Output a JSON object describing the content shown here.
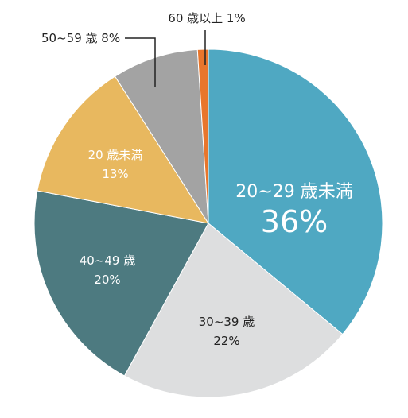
{
  "chart_data": {
    "type": "pie",
    "title": "",
    "slices": [
      {
        "label": "20~29 歳未満",
        "value": 36,
        "value_text": "36%",
        "color": "#4FA8C2",
        "text_color": "#ffffff"
      },
      {
        "label": "30~39 歳",
        "value": 22,
        "value_text": "22%",
        "color": "#DDDEDF",
        "text_color": "#222222"
      },
      {
        "label": "40~49 歳",
        "value": 20,
        "value_text": "20%",
        "color": "#4D7A80",
        "text_color": "#ffffff"
      },
      {
        "label": "20 歳未満",
        "value": 13,
        "value_text": "13%",
        "color": "#E8B85F",
        "text_color": "#ffffff"
      },
      {
        "label": "50~59 歳",
        "value": 8,
        "value_text": "8%",
        "color": "#A3A3A3",
        "text_color": "#222222"
      },
      {
        "label": "60 歳以上",
        "value": 1,
        "value_text": "1%",
        "color": "#E8762C",
        "text_color": "#222222"
      }
    ]
  }
}
